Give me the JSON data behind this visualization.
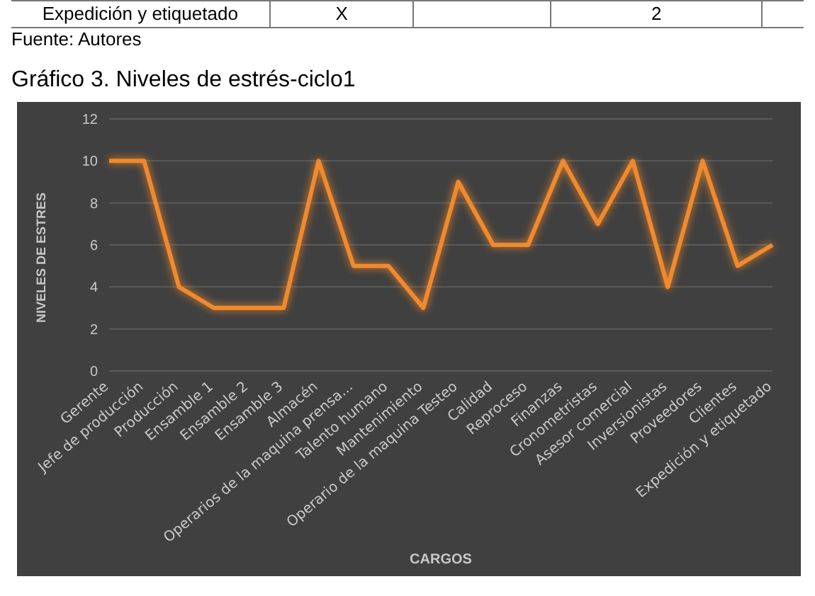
{
  "chart_data": {
    "type": "line",
    "title": "Gráfico 3.  Niveles de estrés-ciclo1",
    "xlabel": "CARGOS",
    "ylabel": "NIVELES DE ESTRES",
    "annotations": [
      "Expedición y etiquetado",
      "X",
      "2",
      "Fuente: Autores"
    ],
    "categories": [
      "Gerente",
      "Jefe de producción",
      "Producción",
      "Ensamble 1",
      "Ensamble 2",
      "Ensamble 3",
      "Almacén",
      "Operarios de la maquina prensa...",
      "Talento humano",
      "Mantenimiento",
      "Operario de la maquina Testeo",
      "Calidad",
      "Reproceso",
      "Finanzas",
      "Cronometristas",
      "Asesor comercial",
      "Inversionistas",
      "Proveedores",
      "Clientes",
      "Expedición y etiquetado"
    ],
    "series": [
      {
        "color": "#f08a2c",
        "values": [
          10,
          10,
          4,
          3,
          3,
          3,
          10,
          5,
          5,
          3,
          9,
          6,
          6,
          10,
          7,
          10,
          4,
          10,
          5,
          6
        ]
      }
    ],
    "ylim": [
      0,
      12
    ],
    "yticks": [
      0,
      2,
      4,
      6,
      8,
      10,
      12
    ],
    "grid": "y",
    "marker": "none",
    "line_style": "solid"
  }
}
